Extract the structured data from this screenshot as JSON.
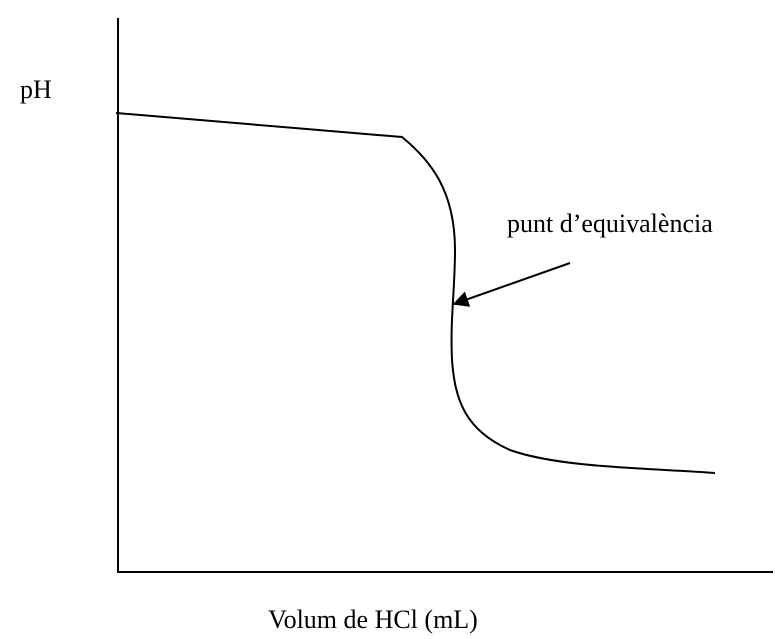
{
  "y_axis_label": "pH",
  "x_axis_label": "Volum de HCl (mL)",
  "annotation": "punt d’equivalència"
}
